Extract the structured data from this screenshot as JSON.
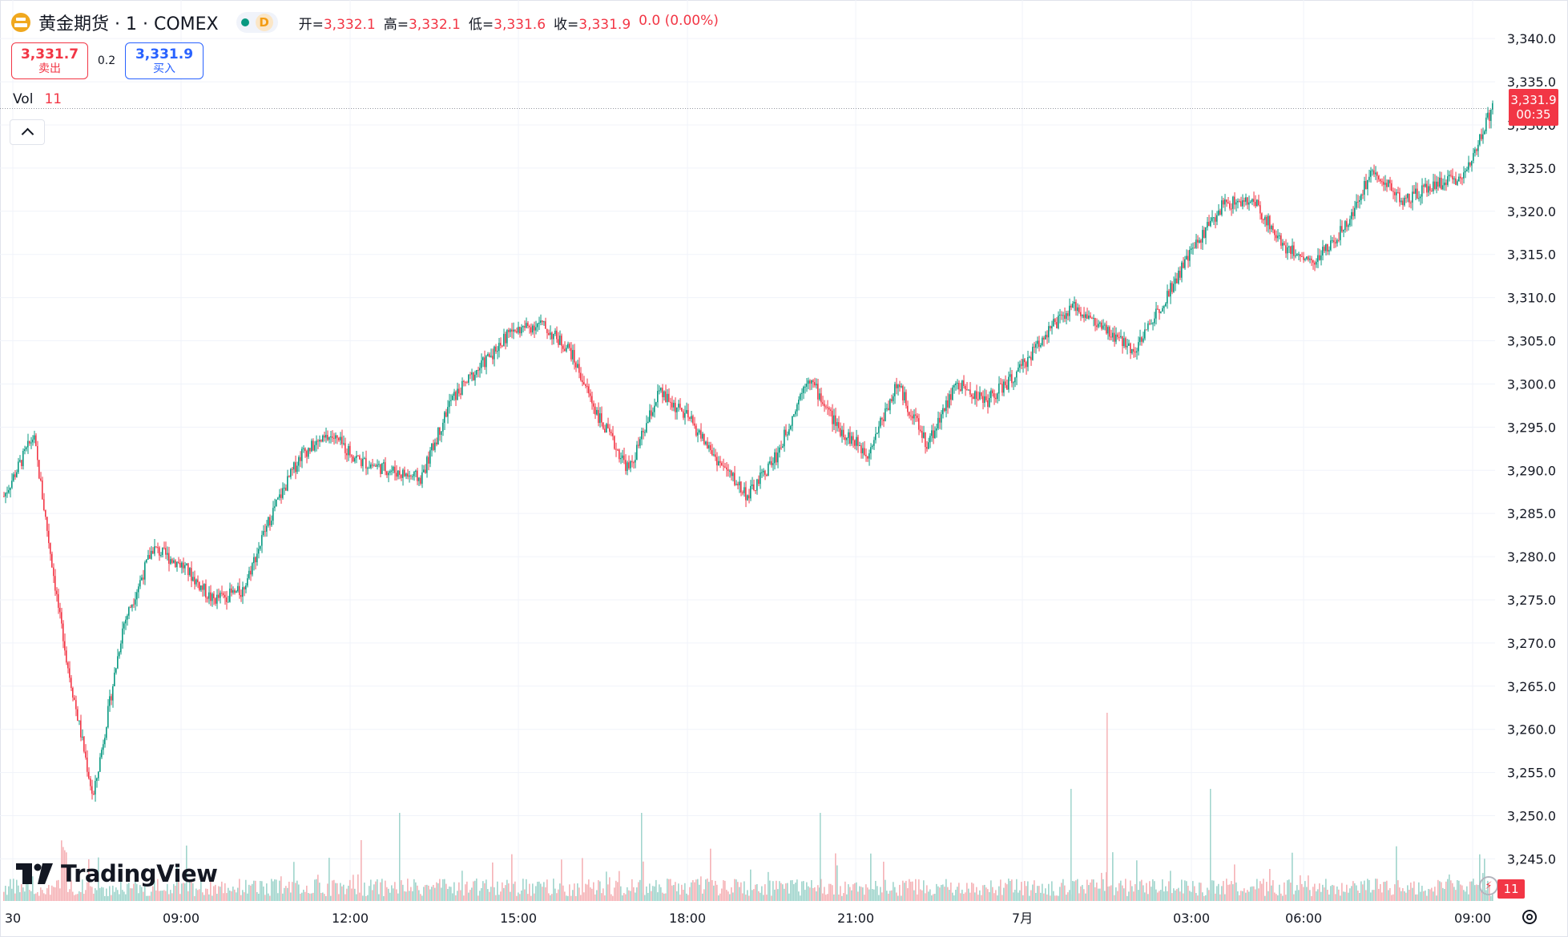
{
  "legend": {
    "symbol": "黄金期货 · 1 · COMEX",
    "status_letter": "D",
    "ohlc": [
      {
        "label": "开=",
        "value": "3,332.1"
      },
      {
        "label": "高=",
        "value": "3,332.1"
      },
      {
        "label": "低=",
        "value": "3,331.6"
      },
      {
        "label": "收=",
        "value": "3,331.9"
      }
    ],
    "change": "0.0 (0.00%)"
  },
  "quote": {
    "sell_price": "3,331.7",
    "sell_label": "卖出",
    "spread": "0.2",
    "buy_price": "3,331.9",
    "buy_label": "买入"
  },
  "volume": {
    "label": "Vol",
    "value": "11"
  },
  "brand": "TradingView",
  "last_price": {
    "price": "3,331.9",
    "countdown": "00:35"
  },
  "colors": {
    "up": "#089981",
    "down": "#f23645",
    "up_volume": "#9fd4cc",
    "down_volume": "#f5b2b6",
    "accent": "#2962ff"
  },
  "icons": [
    "coin-logo-icon",
    "market-open-dot-icon",
    "chevron-up-icon",
    "tradingview-logo-icon",
    "lightning-icon",
    "settings-icon"
  ],
  "chart_data": {
    "type": "candlestick",
    "interval": "1 minute",
    "price_axis": {
      "ticks": [
        "3,340.0",
        "3,335.0",
        "3,330.0",
        "3,325.0",
        "3,320.0",
        "3,315.0",
        "3,310.0",
        "3,305.0",
        "3,300.0",
        "3,295.0",
        "3,290.0",
        "3,285.0",
        "3,280.0",
        "3,275.0",
        "3,270.0",
        "3,265.0",
        "3,260.0",
        "3,255.0",
        "3,250.0",
        "3,245.0"
      ],
      "range": [
        3243.0,
        3341.5
      ]
    },
    "time_axis": {
      "ticks": [
        "30",
        "09:00",
        "12:00",
        "15:00",
        "18:00",
        "21:00",
        "7月",
        "03:00",
        "06:00",
        "09:00"
      ]
    },
    "price_path": [
      [
        "30",
        3287
      ],
      [
        "start+0.2h",
        3294
      ],
      [
        "start+0.5h",
        3270
      ],
      [
        "start+0.7h",
        3252
      ],
      [
        "start+1h",
        3272
      ],
      [
        "start+1.5h",
        3281
      ],
      [
        "start+2.5h",
        3279
      ],
      [
        "start+3.5h",
        3275
      ],
      [
        "09:00",
        3276
      ],
      [
        "09:30",
        3285
      ],
      [
        "10:30",
        3292
      ],
      [
        "11:00",
        3294
      ],
      [
        "12:00",
        3291
      ],
      [
        "13:00",
        3290
      ],
      [
        "13:30",
        3289
      ],
      [
        "14:00",
        3298
      ],
      [
        "15:00",
        3302
      ],
      [
        "15:30",
        3306
      ],
      [
        "16:30",
        3307
      ],
      [
        "17:00",
        3304
      ],
      [
        "17:30",
        3296
      ],
      [
        "17:50",
        3290
      ],
      [
        "18:00",
        3299
      ],
      [
        "19:00",
        3296
      ],
      [
        "19:30",
        3291
      ],
      [
        "20:00",
        3287
      ],
      [
        "20:30",
        3292
      ],
      [
        "21:00",
        3301
      ],
      [
        "21:20",
        3295
      ],
      [
        "21:40",
        3292
      ],
      [
        "22:00",
        3300
      ],
      [
        "22:30",
        3293
      ],
      [
        "23:00",
        3300
      ],
      [
        "23:30",
        3298
      ],
      [
        "00:00",
        3301
      ],
      [
        "01:00",
        3306
      ],
      [
        "01:30",
        3309
      ],
      [
        "02:00",
        3306
      ],
      [
        "02:30",
        3304
      ],
      [
        "03:00",
        3310
      ],
      [
        "03:30",
        3316
      ],
      [
        "04:00",
        3321
      ],
      [
        "05:00",
        3321
      ],
      [
        "05:30",
        3316
      ],
      [
        "06:00",
        3314
      ],
      [
        "06:30",
        3318
      ],
      [
        "07:00",
        3325
      ],
      [
        "07:30",
        3321
      ],
      [
        "08:00",
        3323
      ],
      [
        "09:00",
        3324
      ],
      [
        "09:30",
        3331.9
      ]
    ],
    "last_price": 3331.9
  }
}
